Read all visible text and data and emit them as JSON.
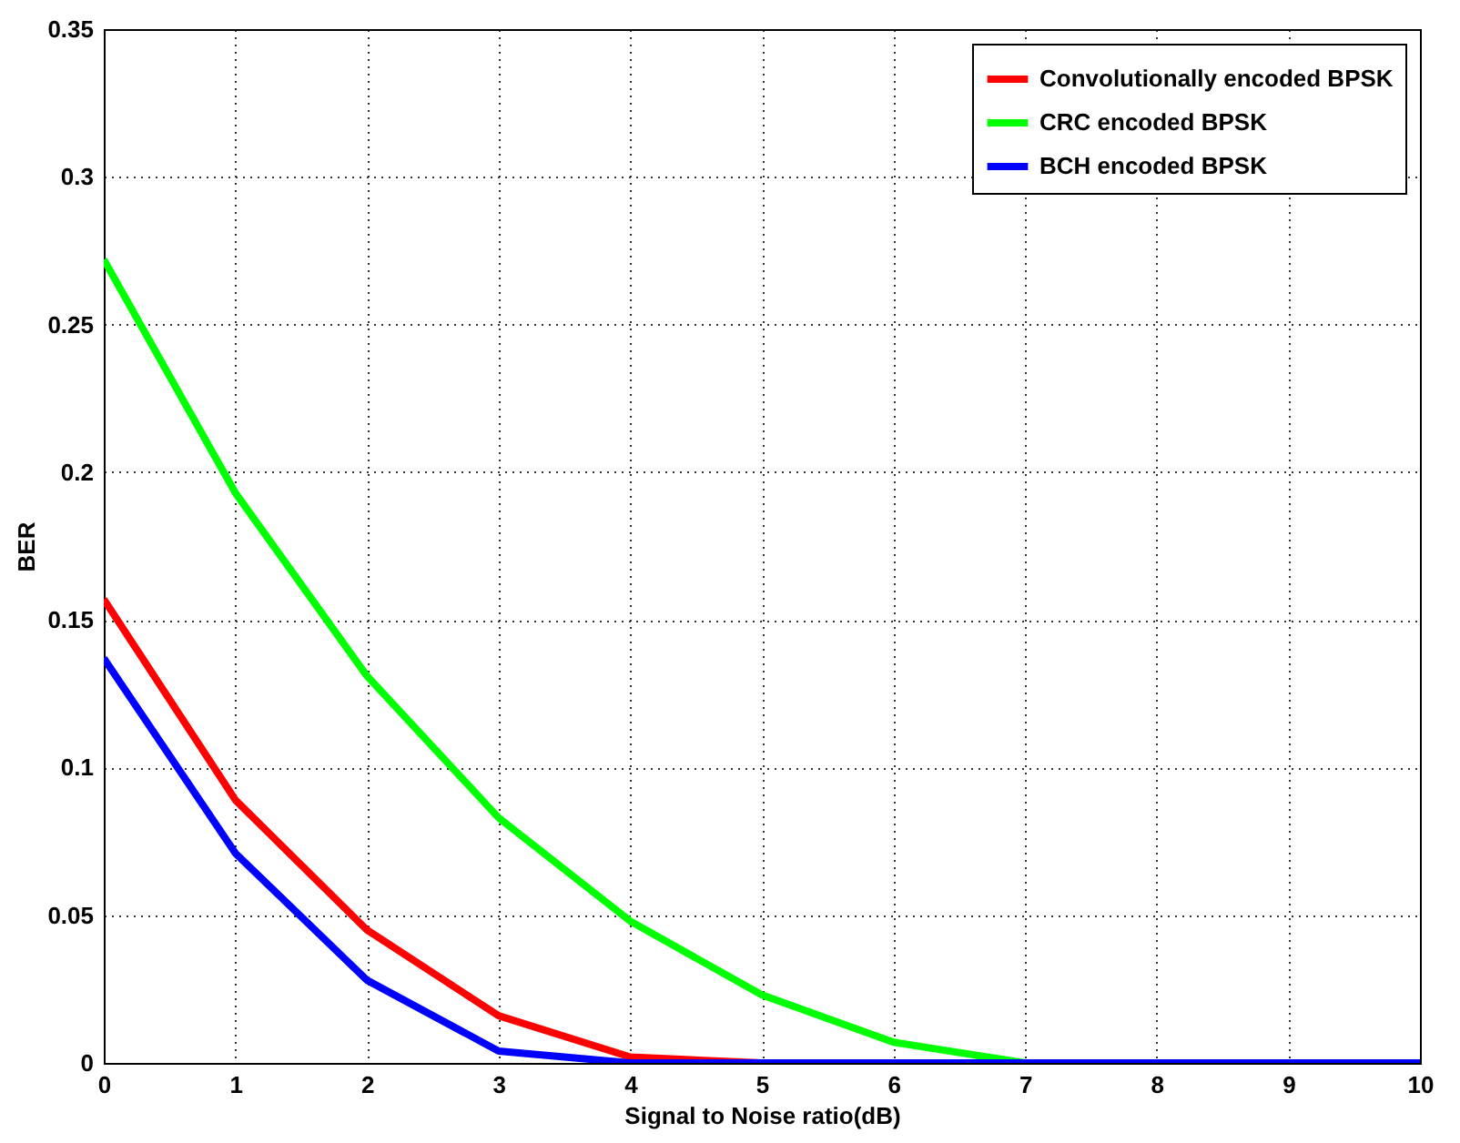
{
  "chart_data": {
    "type": "line",
    "xlabel": "Signal to Noise ratio(dB)",
    "ylabel": "BER",
    "x": [
      0,
      1,
      2,
      3,
      4,
      5,
      6,
      7,
      8,
      9,
      10
    ],
    "series": [
      {
        "name": "Convolutionally encoded BPSK",
        "color": "#ff0000",
        "values": [
          0.157,
          0.089,
          0.045,
          0.016,
          0.002,
          0,
          0,
          null,
          null,
          null,
          null
        ]
      },
      {
        "name": "CRC encoded BPSK",
        "color": "#00ff00",
        "values": [
          0.272,
          0.193,
          0.131,
          0.083,
          0.048,
          0.023,
          0.007,
          0,
          0,
          null,
          null
        ]
      },
      {
        "name": "BCH encoded BPSK",
        "color": "#0000ff",
        "values": [
          0.137,
          0.071,
          0.028,
          0.004,
          0,
          0,
          0,
          0,
          0,
          0,
          0
        ]
      }
    ],
    "xlim": [
      0,
      10
    ],
    "xticks": [
      0,
      1,
      2,
      3,
      4,
      5,
      6,
      7,
      8,
      9,
      10
    ],
    "ylim": [
      0,
      0.35
    ],
    "yticks": [
      0,
      0.05,
      0.1,
      0.15,
      0.2,
      0.25,
      0.3,
      0.35
    ],
    "grid": true,
    "legend": "top right"
  }
}
